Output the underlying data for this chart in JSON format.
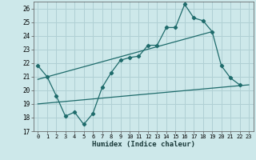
{
  "title": "",
  "xlabel": "Humidex (Indice chaleur)",
  "bg_color": "#cde8ea",
  "grid_color": "#b0d0d4",
  "line_color": "#1e6b6b",
  "xlim": [
    -0.5,
    23.5
  ],
  "ylim": [
    17,
    26.5
  ],
  "yticks": [
    17,
    18,
    19,
    20,
    21,
    22,
    23,
    24,
    25,
    26
  ],
  "xticks": [
    0,
    1,
    2,
    3,
    4,
    5,
    6,
    7,
    8,
    9,
    10,
    11,
    12,
    13,
    14,
    15,
    16,
    17,
    18,
    19,
    20,
    21,
    22,
    23
  ],
  "line1_x": [
    0,
    1,
    2,
    3,
    4,
    5,
    6,
    7,
    8,
    9,
    10,
    11,
    12,
    13,
    14,
    15,
    16,
    17,
    18,
    19,
    20,
    21,
    22
  ],
  "line1_y": [
    21.8,
    21.0,
    19.6,
    18.1,
    18.4,
    17.5,
    18.3,
    20.2,
    21.3,
    22.2,
    22.4,
    22.5,
    23.3,
    23.3,
    24.6,
    24.6,
    26.3,
    25.3,
    25.1,
    24.3,
    21.8,
    20.9,
    20.4
  ],
  "line2_x": [
    0,
    23
  ],
  "line2_y": [
    19.0,
    20.4
  ],
  "line3_x": [
    0,
    19
  ],
  "line3_y": [
    20.8,
    24.3
  ]
}
